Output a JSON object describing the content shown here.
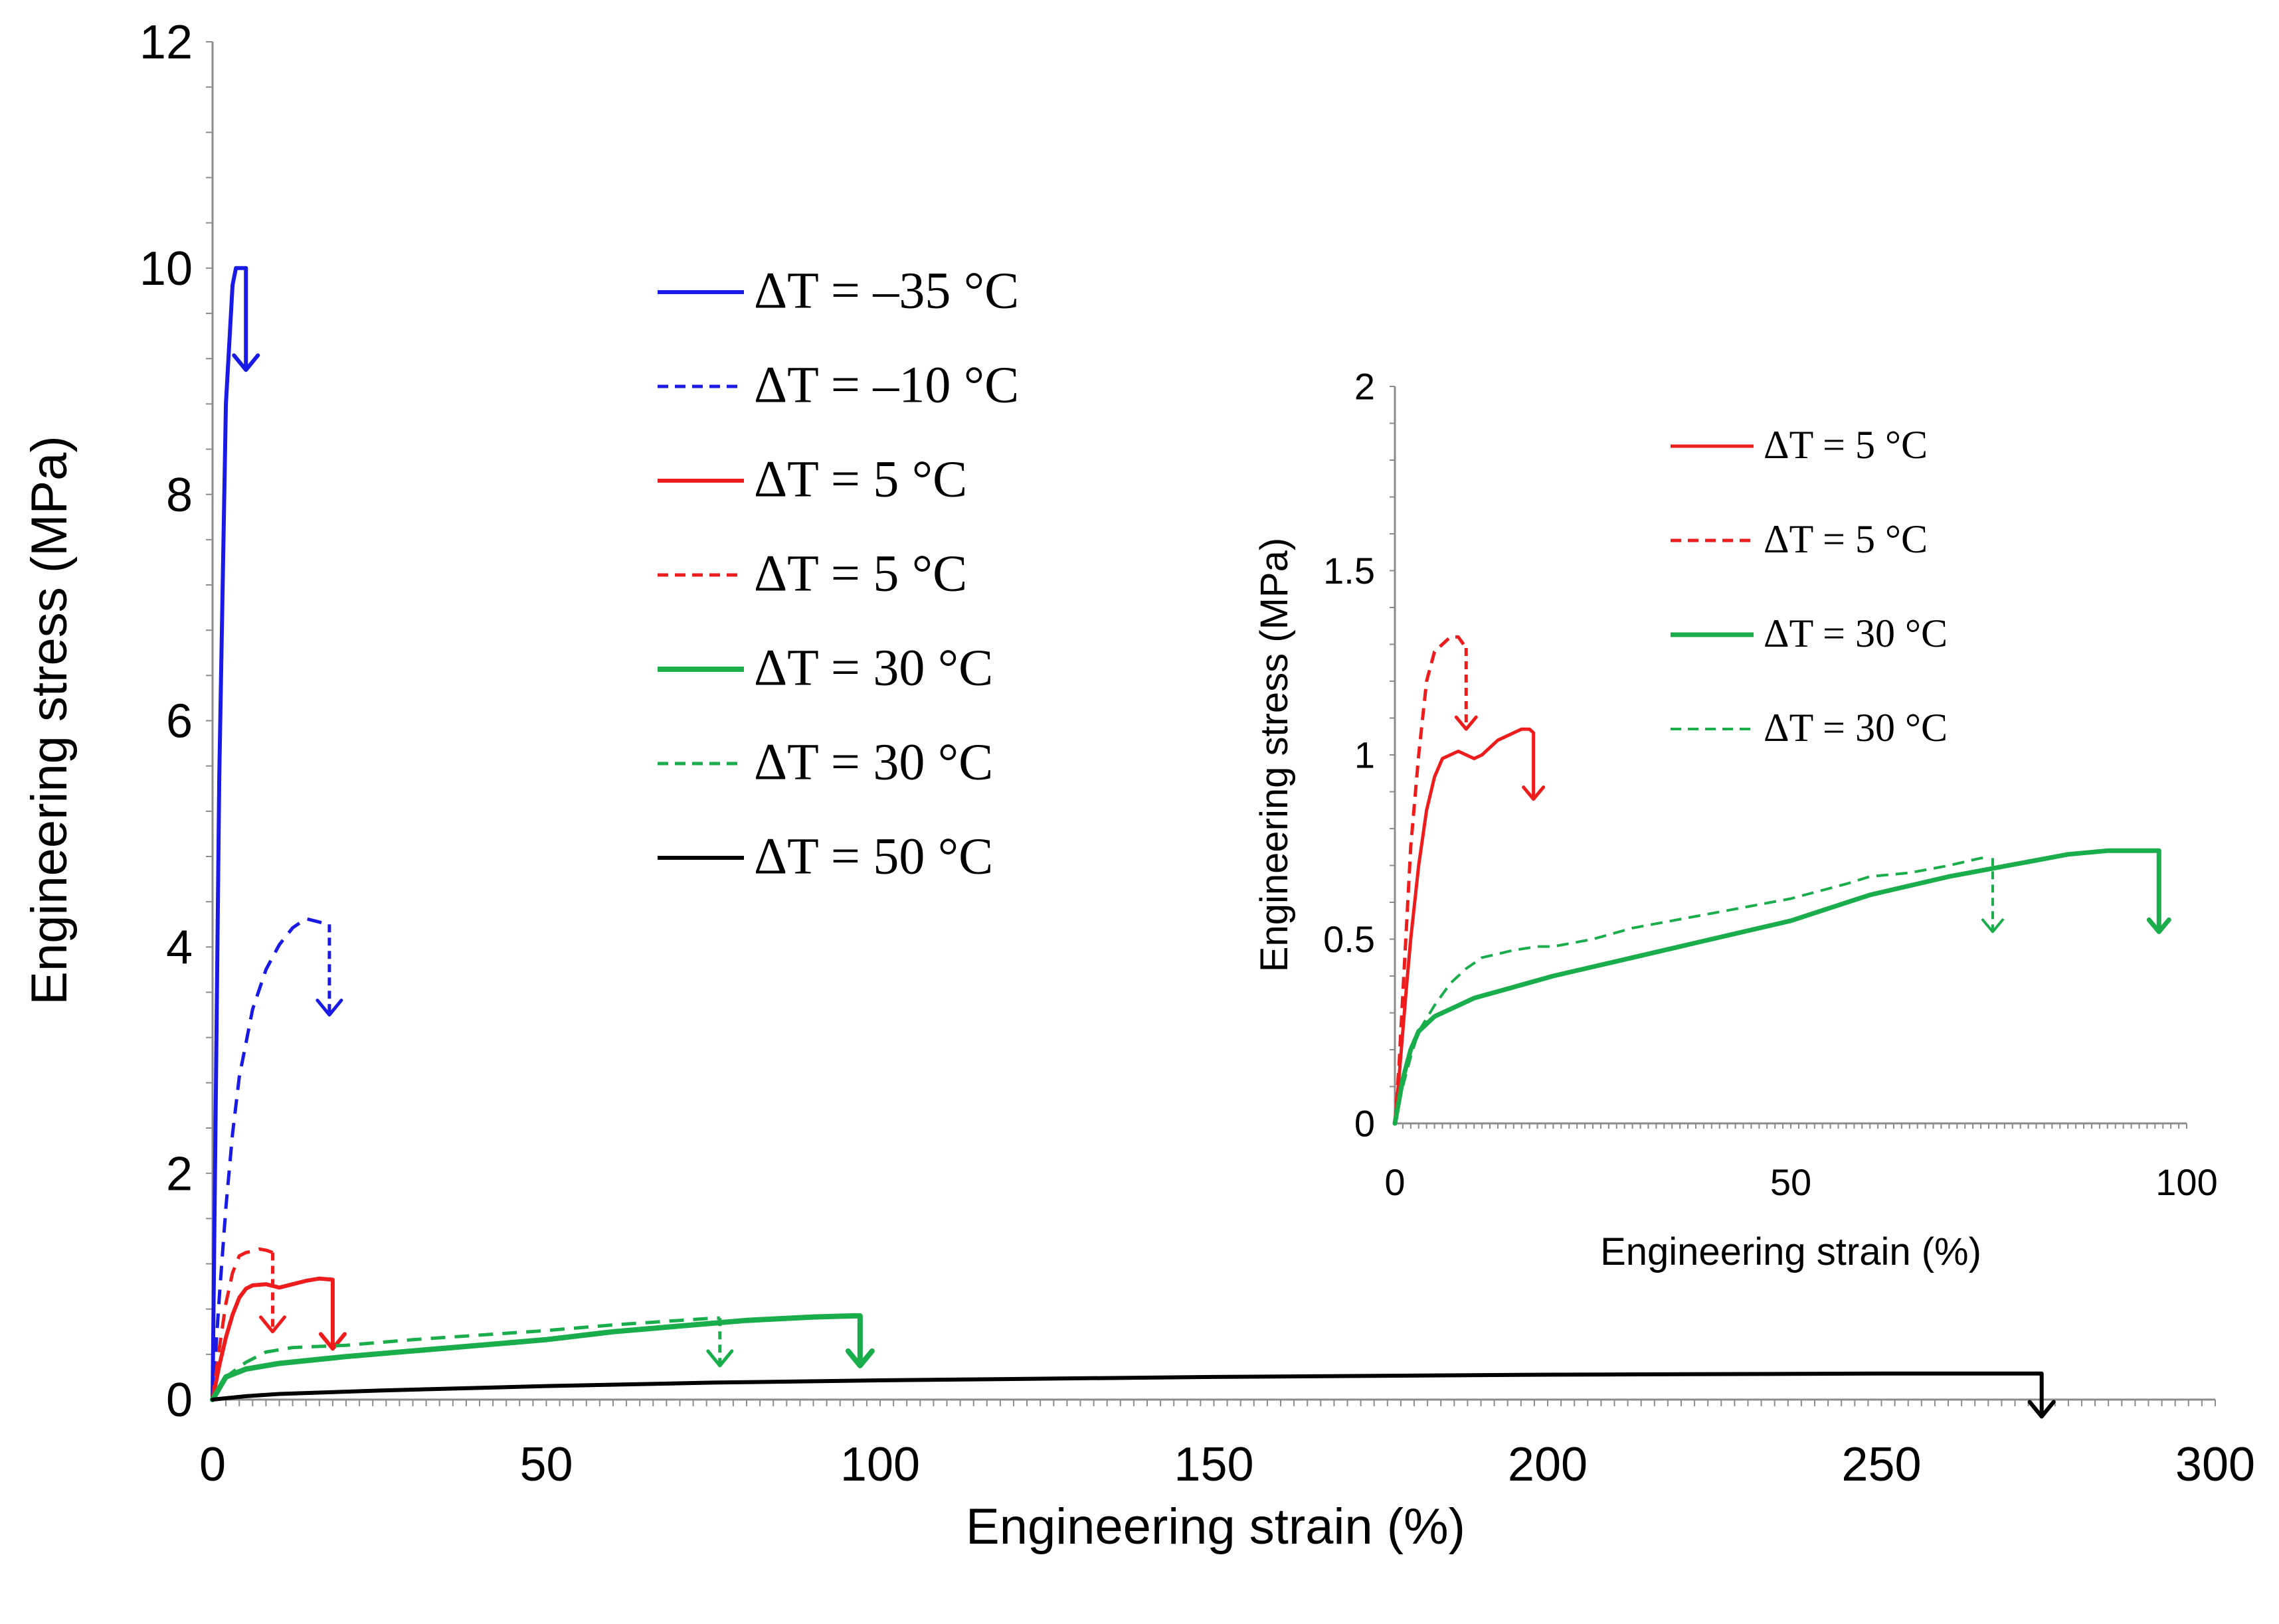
{
  "chart_data": [
    {
      "id": "main",
      "type": "line",
      "xlabel": "Engineering strain (%)",
      "ylabel": "Engineering stress (MPa)",
      "xlim": [
        0,
        300
      ],
      "ylim": [
        0,
        12
      ],
      "xticks": [
        "0",
        "50",
        "100",
        "150",
        "200",
        "250",
        "300"
      ],
      "yticks": [
        "0",
        "2",
        "4",
        "6",
        "8",
        "10",
        "12"
      ],
      "legend": "top-center",
      "series": [
        {
          "name": "ΔT = –35 °C",
          "color": "#1a1ae6",
          "dash": "solid",
          "width": 6,
          "x": [
            0,
            1,
            2,
            3,
            3.5,
            4,
            4.5,
            5
          ],
          "y": [
            0,
            5.5,
            8.8,
            9.85,
            10.0,
            10.0,
            10.0,
            10.0
          ],
          "break_arrow": {
            "x": 5,
            "from": 10.0,
            "to": 9.1
          }
        },
        {
          "name": "ΔT = –10 °C",
          "color": "#1a1ae6",
          "dash": "dashed",
          "width": 5,
          "x": [
            0,
            1,
            2,
            3,
            4,
            6,
            8,
            10,
            12,
            14,
            16,
            17
          ],
          "y": [
            0,
            0.9,
            1.7,
            2.35,
            2.85,
            3.45,
            3.8,
            4.02,
            4.17,
            4.25,
            4.22,
            4.2
          ],
          "break_arrow": {
            "x": 17.5,
            "from": 4.2,
            "to": 3.4
          }
        },
        {
          "name": "ΔT = 5 °C",
          "color": "#ee1c1c",
          "dash": "solid",
          "width": 6,
          "x": [
            0,
            1,
            2,
            3,
            4,
            5,
            6,
            8,
            10,
            12,
            14,
            16,
            18
          ],
          "y": [
            0,
            0.3,
            0.55,
            0.75,
            0.9,
            0.98,
            1.01,
            1.02,
            0.99,
            1.02,
            1.05,
            1.07,
            1.06
          ],
          "break_arrow": {
            "x": 18,
            "from": 1.06,
            "to": 0.45
          }
        },
        {
          "name": "ΔT = 5 °C",
          "color": "#ee1c1c",
          "dash": "dashed",
          "width": 5,
          "x": [
            0,
            1,
            2,
            3,
            4,
            5,
            6,
            7,
            8,
            9
          ],
          "y": [
            0,
            0.45,
            0.85,
            1.12,
            1.27,
            1.3,
            1.31,
            1.33,
            1.32,
            1.3
          ],
          "break_arrow": {
            "x": 9,
            "from": 1.3,
            "to": 0.6
          }
        },
        {
          "name": "ΔT = 30 °C",
          "color": "#1aad4c",
          "dash": "solid",
          "width": 8,
          "x": [
            0,
            2,
            5,
            10,
            20,
            30,
            40,
            50,
            60,
            70,
            80,
            90,
            96,
            97
          ],
          "y": [
            0,
            0.2,
            0.27,
            0.32,
            0.38,
            0.43,
            0.48,
            0.53,
            0.6,
            0.65,
            0.7,
            0.73,
            0.74,
            0.74
          ],
          "break_arrow": {
            "x": 97,
            "from": 0.74,
            "to": 0.3
          }
        },
        {
          "name": "ΔT = 30 °C",
          "color": "#1aad4c",
          "dash": "dashed",
          "width": 5,
          "x": [
            0,
            2,
            5,
            8,
            12,
            20,
            30,
            40,
            50,
            60,
            70,
            75,
            76
          ],
          "y": [
            0,
            0.2,
            0.33,
            0.42,
            0.46,
            0.48,
            0.53,
            0.57,
            0.61,
            0.66,
            0.7,
            0.72,
            0.72
          ],
          "break_arrow": {
            "x": 76,
            "from": 0.72,
            "to": 0.3
          }
        },
        {
          "name": "ΔT = 50 °C",
          "color": "#000000",
          "dash": "solid",
          "width": 6,
          "x": [
            0,
            5,
            10,
            25,
            50,
            75,
            100,
            150,
            200,
            250,
            274
          ],
          "y": [
            0,
            0.03,
            0.05,
            0.08,
            0.12,
            0.15,
            0.17,
            0.2,
            0.22,
            0.23,
            0.23
          ],
          "break_arrow": {
            "x": 274,
            "from": 0.23,
            "to": -0.15
          }
        }
      ]
    },
    {
      "id": "inset",
      "type": "line",
      "xlabel": "Engineering strain (%)",
      "ylabel": "Engineering stress (MPa)",
      "xlim": [
        0,
        100
      ],
      "ylim": [
        0,
        2
      ],
      "xticks": [
        "0",
        "50",
        "100"
      ],
      "yticks": [
        "0",
        "0.5",
        "1",
        "1.5",
        "2"
      ],
      "legend": "top-right",
      "series": [
        {
          "name": "ΔT = 5 °C",
          "color": "#ee1c1c",
          "dash": "solid",
          "width": 5,
          "x": [
            0,
            0.5,
            1,
            1.5,
            2,
            3,
            4,
            5,
            6,
            7,
            8,
            9,
            10,
            11,
            12,
            13,
            14,
            15,
            16,
            17,
            17.5
          ],
          "y": [
            0,
            0.12,
            0.25,
            0.38,
            0.5,
            0.7,
            0.85,
            0.94,
            0.99,
            1.0,
            1.01,
            1.0,
            0.99,
            1.0,
            1.02,
            1.04,
            1.05,
            1.06,
            1.07,
            1.07,
            1.06
          ],
          "break_arrow": {
            "x": 17.5,
            "from": 1.06,
            "to": 0.88
          }
        },
        {
          "name": "ΔT = 5 °C",
          "color": "#ee1c1c",
          "dash": "dashed",
          "width": 5,
          "x": [
            0,
            0.5,
            1,
            1.5,
            2,
            3,
            4,
            5,
            6,
            7,
            8,
            9
          ],
          "y": [
            0,
            0.15,
            0.35,
            0.55,
            0.75,
            1.0,
            1.2,
            1.28,
            1.3,
            1.32,
            1.32,
            1.29
          ],
          "break_arrow": {
            "x": 9,
            "from": 1.29,
            "to": 1.07
          }
        },
        {
          "name": "ΔT = 30 °C",
          "color": "#1aad4c",
          "dash": "solid",
          "width": 7,
          "x": [
            0,
            1,
            2,
            3,
            5,
            8,
            10,
            15,
            20,
            30,
            40,
            50,
            60,
            70,
            80,
            85,
            90,
            95,
            96.5
          ],
          "y": [
            0,
            0.12,
            0.2,
            0.25,
            0.29,
            0.32,
            0.34,
            0.37,
            0.4,
            0.45,
            0.5,
            0.55,
            0.62,
            0.67,
            0.71,
            0.73,
            0.74,
            0.74,
            0.74
          ],
          "break_arrow": {
            "x": 96.5,
            "from": 0.74,
            "to": 0.52
          }
        },
        {
          "name": "ΔT = 30 °C",
          "color": "#1aad4c",
          "dash": "dashed",
          "width": 4,
          "x": [
            0,
            1,
            2,
            3,
            5,
            7,
            9,
            11,
            13,
            15,
            18,
            20,
            25,
            30,
            40,
            50,
            57,
            60,
            65,
            70,
            74,
            75
          ],
          "y": [
            0,
            0.1,
            0.18,
            0.25,
            0.32,
            0.38,
            0.42,
            0.45,
            0.46,
            0.47,
            0.48,
            0.48,
            0.5,
            0.53,
            0.57,
            0.61,
            0.65,
            0.67,
            0.68,
            0.7,
            0.72,
            0.72
          ],
          "break_arrow": {
            "x": 75.5,
            "from": 0.72,
            "to": 0.52
          }
        }
      ]
    }
  ]
}
